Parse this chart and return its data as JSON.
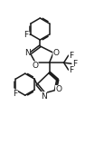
{
  "bg_color": "#ffffff",
  "line_color": "#1a1a1a",
  "font_size": 6.5,
  "lw": 1.1,
  "figsize": [
    1.16,
    1.6
  ],
  "dpi": 100,
  "xlim": [
    0,
    10
  ],
  "ylim": [
    0,
    14
  ]
}
